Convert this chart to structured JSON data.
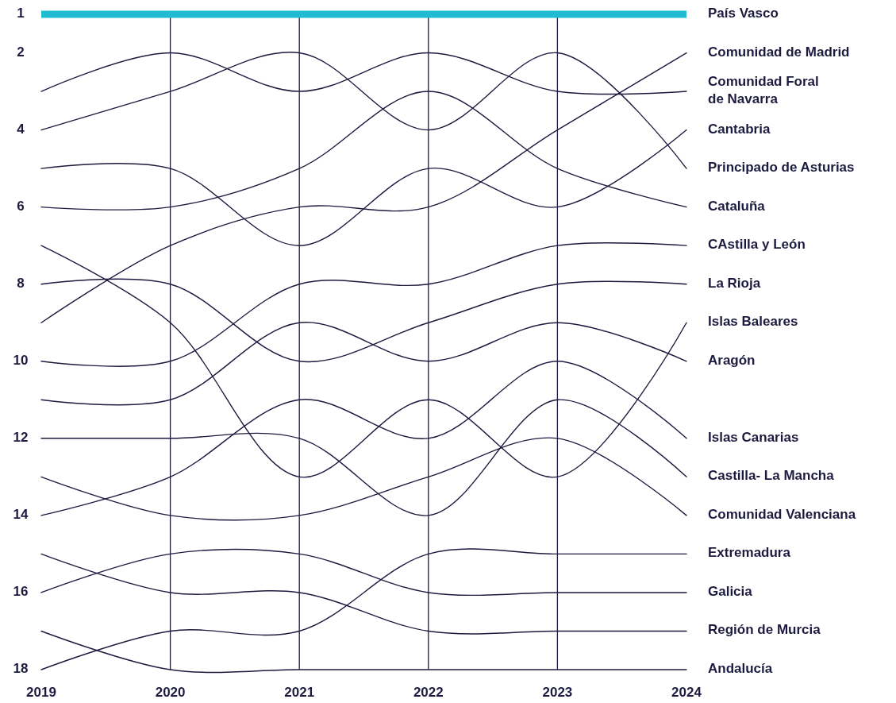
{
  "chart_data": {
    "type": "line",
    "x": [
      2019,
      2020,
      2021,
      2022,
      2023,
      2024
    ],
    "xlim": [
      2019,
      2024
    ],
    "xticks": [
      2019,
      2020,
      2021,
      2022,
      2023,
      2024
    ],
    "ylim": [
      18,
      1
    ],
    "yticks": [
      1,
      2,
      4,
      6,
      8,
      10,
      12,
      14,
      16,
      18
    ],
    "grid": "x",
    "marker": "none",
    "line_style": "solid",
    "series": [
      {
        "name": "País Vasco",
        "color": "#1fbcd2",
        "values": [
          1,
          1,
          1,
          1,
          1,
          1
        ]
      },
      {
        "name": "Comunidad de Madrid",
        "color": "#1c1b3f",
        "values": [
          9,
          7,
          6,
          6,
          4,
          2
        ]
      },
      {
        "name": "Comunidad Foral\nde Navarra",
        "color": "#1c1b3f",
        "values": [
          3,
          2,
          3,
          2,
          3,
          3
        ]
      },
      {
        "name": "Cantabria",
        "color": "#1c1b3f",
        "values": [
          5,
          5,
          7,
          5,
          6,
          4
        ]
      },
      {
        "name": "Principado de Asturias",
        "color": "#1c1b3f",
        "values": [
          4,
          3,
          2,
          4,
          2,
          5
        ]
      },
      {
        "name": "Cataluña",
        "color": "#1c1b3f",
        "values": [
          6,
          6,
          5,
          3,
          5,
          6
        ]
      },
      {
        "name": "CAstilla y León",
        "color": "#1c1b3f",
        "values": [
          10,
          10,
          8,
          8,
          7,
          7
        ]
      },
      {
        "name": "La Rioja",
        "color": "#1c1b3f",
        "values": [
          8,
          8,
          10,
          9,
          8,
          8
        ]
      },
      {
        "name": "Islas Baleares",
        "color": "#1c1b3f",
        "values": [
          7,
          9,
          13,
          11,
          13,
          9
        ]
      },
      {
        "name": "Aragón",
        "color": "#1c1b3f",
        "values": [
          11,
          11,
          9,
          10,
          9,
          10
        ]
      },
      {
        "name": "Islas Canarias",
        "color": "#1c1b3f",
        "values": [
          14,
          13,
          11,
          12,
          10,
          12
        ]
      },
      {
        "name": "Castilla- La Mancha",
        "color": "#1c1b3f",
        "values": [
          12,
          12,
          12,
          14,
          11,
          13
        ]
      },
      {
        "name": "Comunidad Valenciana",
        "color": "#1c1b3f",
        "values": [
          13,
          14,
          14,
          13,
          12,
          14
        ]
      },
      {
        "name": "Extremadura",
        "color": "#1c1b3f",
        "values": [
          18,
          17,
          17,
          15,
          15,
          15
        ]
      },
      {
        "name": "Galicia",
        "color": "#1c1b3f",
        "values": [
          16,
          15,
          15,
          16,
          16,
          16
        ]
      },
      {
        "name": "Región de Murcia",
        "color": "#1c1b3f",
        "values": [
          15,
          16,
          16,
          17,
          17,
          17
        ]
      },
      {
        "name": "Andalucía",
        "color": "#1c1b3f",
        "values": [
          17,
          18,
          18,
          18,
          18,
          18
        ]
      }
    ]
  }
}
